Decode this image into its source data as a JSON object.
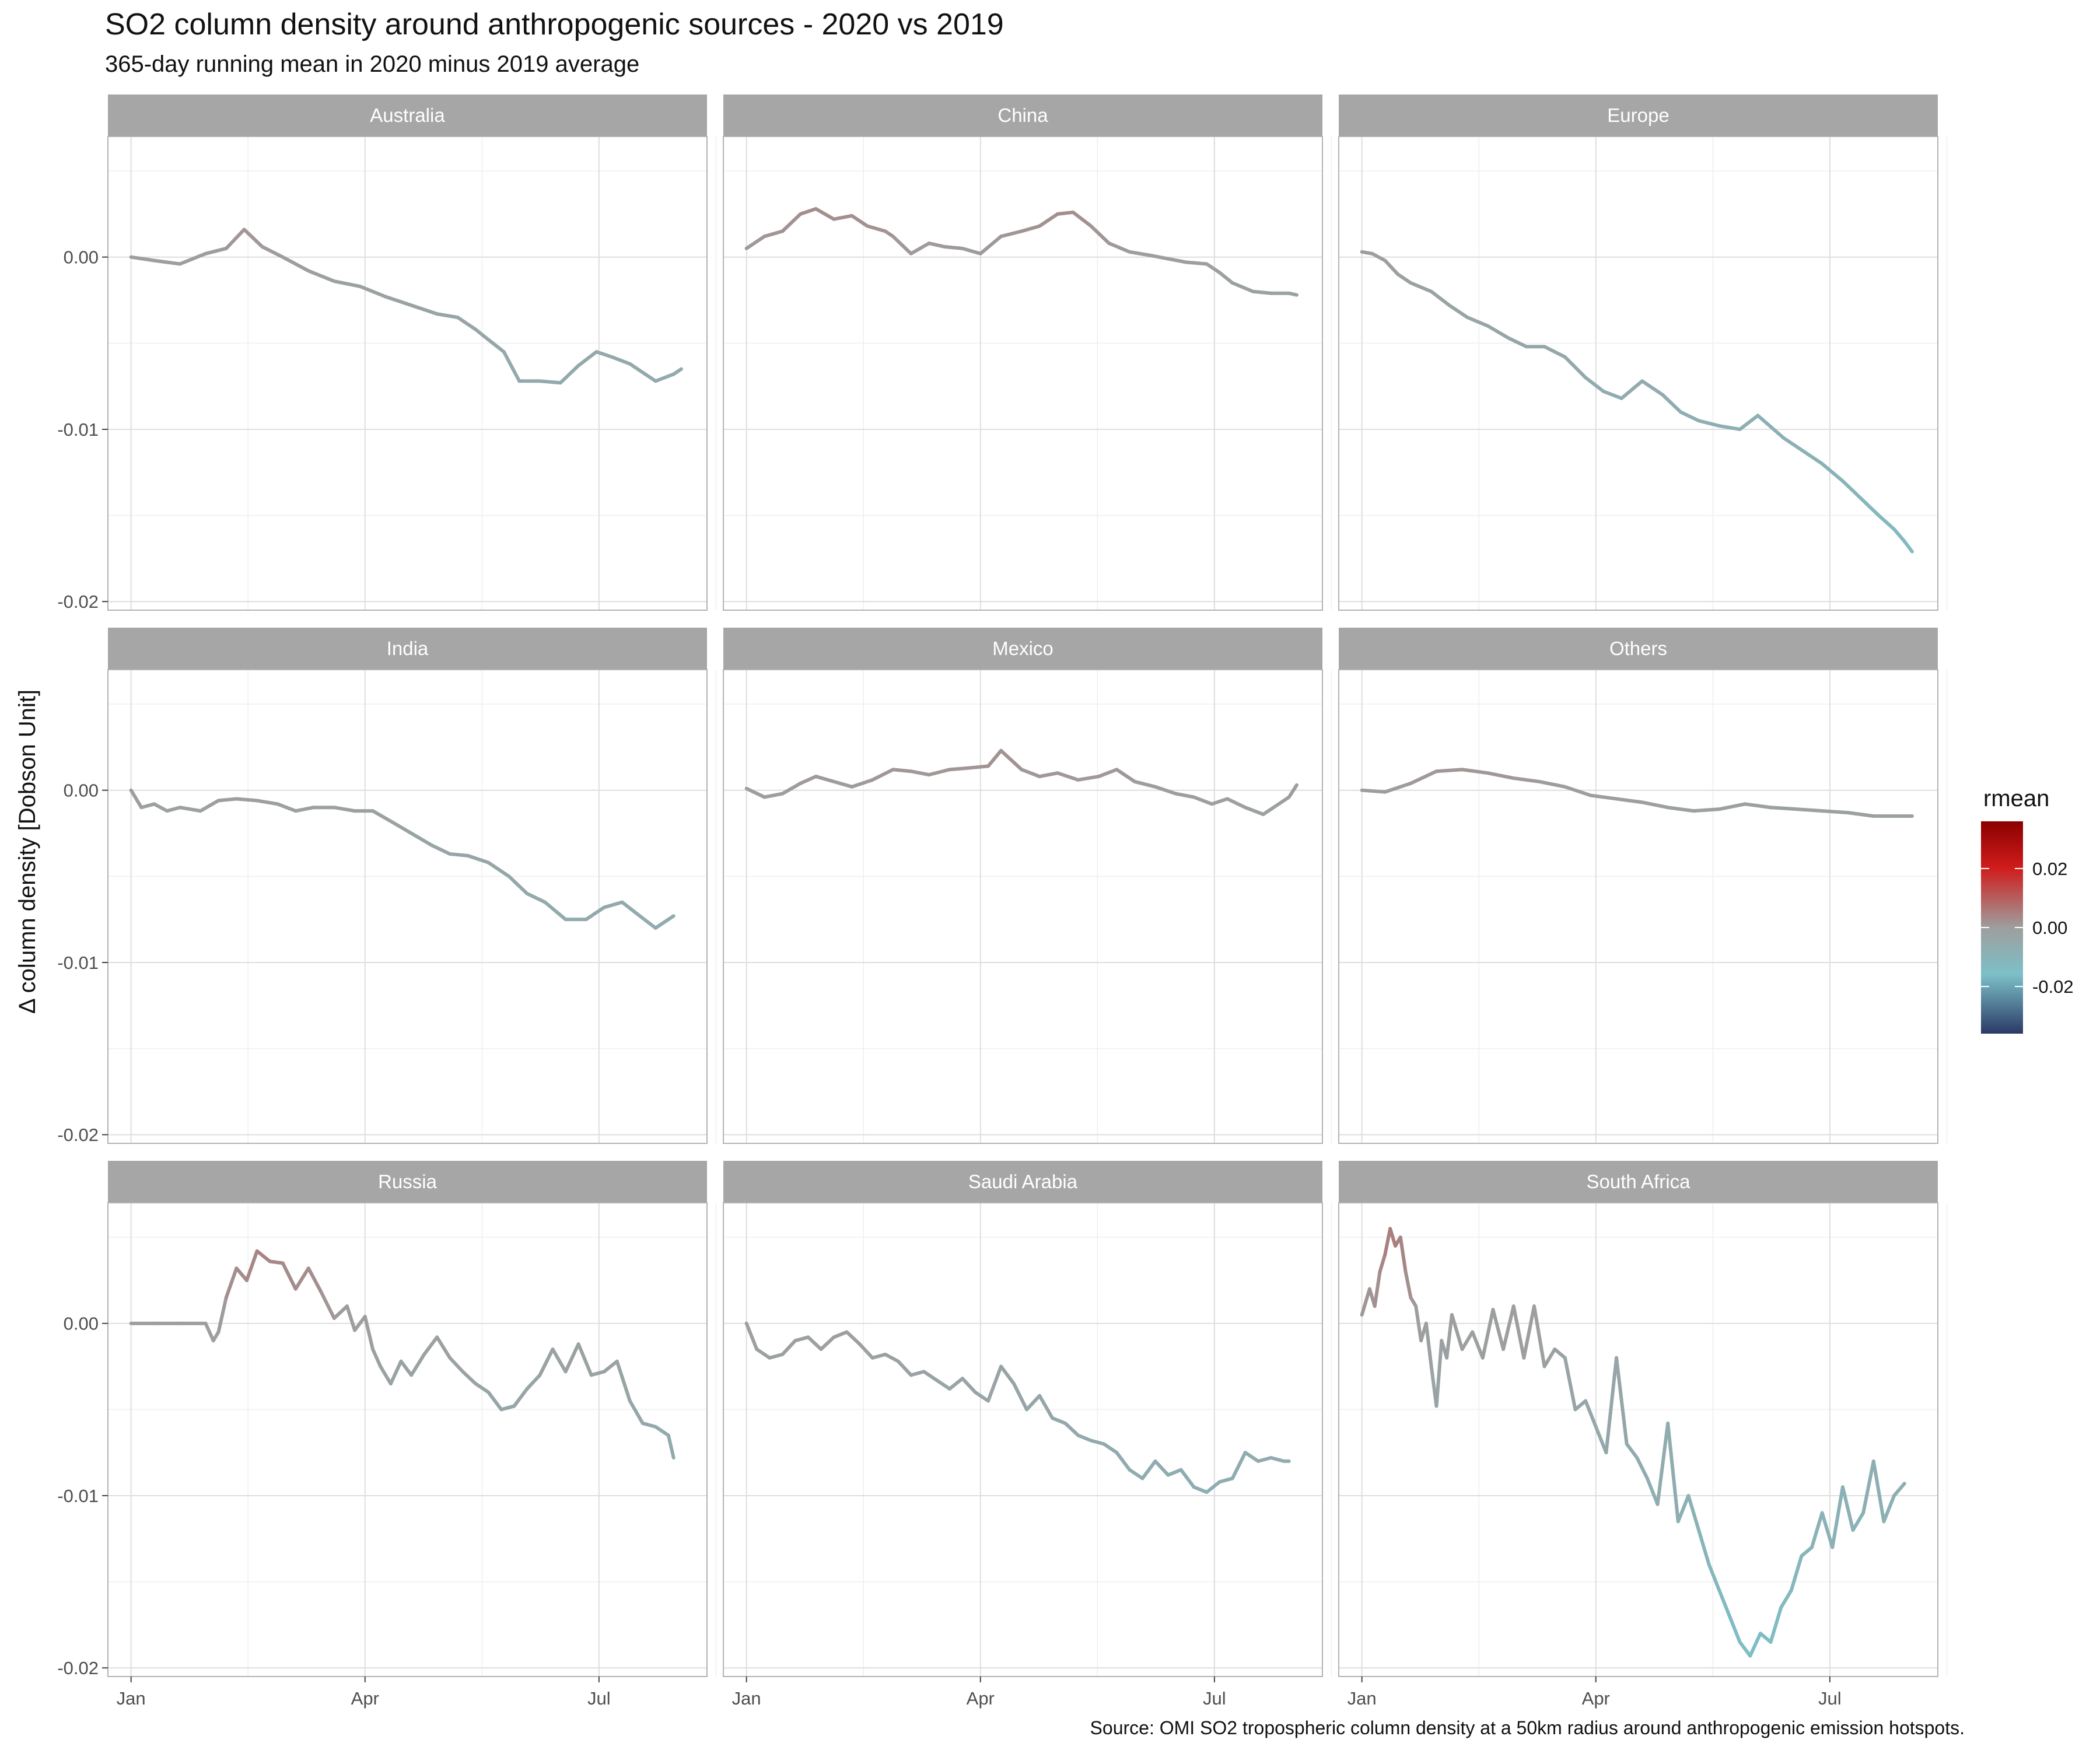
{
  "title": "SO2 column density around anthropogenic sources - 2020 vs 2019",
  "subtitle": "365-day running mean in 2020 minus 2019 average",
  "caption": "Source: OMI SO2 tropospheric column density at a 50km radius around anthropogenic emission hotspots.",
  "chart_data": {
    "type": "line",
    "title": "SO2 column density around anthropogenic sources - 2020 vs 2019",
    "subtitle": "365-day running mean in 2020 minus 2019 average",
    "xlabel": "",
    "ylabel": "Δ column density [Dobson Unit]",
    "x_ticks": [
      "Jan",
      "Apr",
      "Jul"
    ],
    "x_tick_days": [
      1,
      92,
      183
    ],
    "xlim": [
      -8,
      225
    ],
    "ylim": [
      -0.0205,
      0.007
    ],
    "y_ticks": [
      0.0,
      -0.01,
      -0.02
    ],
    "y_tick_labels": [
      "0.00",
      "-0.01",
      "-0.02"
    ],
    "grid": true,
    "facet_layout": [
      3,
      3
    ],
    "legend": {
      "title": "rmean",
      "placement": "right",
      "ticks": [
        0.02,
        0.0,
        -0.02
      ],
      "tick_labels": [
        "0.02",
        "0.00",
        "-0.02"
      ],
      "range": [
        -0.036,
        0.036
      ],
      "colors": [
        "#2b3a66",
        "#7cc0c8",
        "#9e9e9e",
        "#d01c1c",
        "#8b0000"
      ]
    },
    "series": [
      {
        "name": "Australia",
        "x": [
          1,
          10,
          20,
          30,
          38,
          45,
          52,
          60,
          70,
          80,
          90,
          100,
          110,
          120,
          128,
          135,
          140,
          146,
          152,
          160,
          168,
          175,
          182,
          188,
          195,
          205,
          212,
          215
        ],
        "y": [
          0.0,
          -0.0002,
          -0.0004,
          0.0002,
          0.0005,
          0.0016,
          0.0006,
          0.0,
          -0.0008,
          -0.0014,
          -0.0017,
          -0.0023,
          -0.0028,
          -0.0033,
          -0.0035,
          -0.0042,
          -0.0048,
          -0.0055,
          -0.0072,
          -0.0072,
          -0.0073,
          -0.0063,
          -0.0055,
          -0.0058,
          -0.0062,
          -0.0072,
          -0.0068,
          -0.0065
        ]
      },
      {
        "name": "China",
        "x": [
          1,
          8,
          15,
          22,
          28,
          35,
          42,
          48,
          55,
          58,
          65,
          72,
          78,
          85,
          92,
          100,
          108,
          115,
          122,
          128,
          135,
          142,
          150,
          158,
          165,
          172,
          180,
          185,
          190,
          198,
          205,
          212,
          215
        ],
        "y": [
          0.0005,
          0.0012,
          0.0015,
          0.0025,
          0.0028,
          0.0022,
          0.0024,
          0.0018,
          0.0015,
          0.0012,
          0.0002,
          0.0008,
          0.0006,
          0.0005,
          0.0002,
          0.0012,
          0.0015,
          0.0018,
          0.0025,
          0.0026,
          0.0018,
          0.0008,
          0.0003,
          0.0001,
          -0.0001,
          -0.0003,
          -0.0004,
          -0.0009,
          -0.0015,
          -0.002,
          -0.0021,
          -0.0021,
          -0.0022
        ]
      },
      {
        "name": "Europe",
        "x": [
          1,
          5,
          10,
          15,
          20,
          28,
          35,
          42,
          50,
          58,
          65,
          72,
          80,
          88,
          95,
          102,
          110,
          118,
          125,
          132,
          140,
          148,
          155,
          165,
          172,
          180,
          188,
          195,
          202,
          208,
          212,
          215
        ],
        "y": [
          0.0003,
          0.0002,
          -0.0002,
          -0.001,
          -0.0015,
          -0.002,
          -0.0028,
          -0.0035,
          -0.004,
          -0.0047,
          -0.0052,
          -0.0052,
          -0.0058,
          -0.007,
          -0.0078,
          -0.0082,
          -0.0072,
          -0.008,
          -0.009,
          -0.0095,
          -0.0098,
          -0.01,
          -0.0092,
          -0.0105,
          -0.0112,
          -0.012,
          -0.013,
          -0.014,
          -0.015,
          -0.0158,
          -0.0165,
          -0.0171
        ]
      },
      {
        "name": "India",
        "x": [
          1,
          5,
          10,
          15,
          20,
          28,
          35,
          42,
          50,
          58,
          65,
          72,
          80,
          88,
          95,
          102,
          110,
          118,
          125,
          132,
          140,
          148,
          155,
          162,
          170,
          178,
          185,
          192,
          198,
          205,
          210,
          212
        ],
        "y": [
          0.0,
          -0.001,
          -0.0008,
          -0.0012,
          -0.001,
          -0.0012,
          -0.0006,
          -0.0005,
          -0.0006,
          -0.0008,
          -0.0012,
          -0.001,
          -0.001,
          -0.0012,
          -0.0012,
          -0.0018,
          -0.0025,
          -0.0032,
          -0.0037,
          -0.0038,
          -0.0042,
          -0.005,
          -0.006,
          -0.0065,
          -0.0075,
          -0.0075,
          -0.0068,
          -0.0065,
          -0.0072,
          -0.008,
          -0.0075,
          -0.0073
        ]
      },
      {
        "name": "Mexico",
        "x": [
          1,
          8,
          15,
          22,
          28,
          35,
          42,
          50,
          58,
          65,
          72,
          80,
          88,
          95,
          100,
          108,
          115,
          122,
          130,
          138,
          145,
          152,
          160,
          168,
          175,
          182,
          188,
          195,
          202,
          208,
          212,
          215
        ],
        "y": [
          0.0001,
          -0.0004,
          -0.0002,
          0.0004,
          0.0008,
          0.0005,
          0.0002,
          0.0006,
          0.0012,
          0.0011,
          0.0009,
          0.0012,
          0.0013,
          0.0014,
          0.0023,
          0.0012,
          0.0008,
          0.001,
          0.0006,
          0.0008,
          0.0012,
          0.0005,
          0.0002,
          -0.0002,
          -0.0004,
          -0.0008,
          -0.0005,
          -0.001,
          -0.0014,
          -0.0008,
          -0.0004,
          0.0003
        ]
      },
      {
        "name": "Others",
        "x": [
          1,
          10,
          20,
          30,
          40,
          50,
          60,
          70,
          80,
          90,
          100,
          110,
          120,
          130,
          140,
          150,
          160,
          170,
          180,
          190,
          200,
          210,
          215
        ],
        "y": [
          0.0,
          -0.0001,
          0.0004,
          0.0011,
          0.0012,
          0.001,
          0.0007,
          0.0005,
          0.0002,
          -0.0003,
          -0.0005,
          -0.0007,
          -0.001,
          -0.0012,
          -0.0011,
          -0.0008,
          -0.001,
          -0.0011,
          -0.0012,
          -0.0013,
          -0.0015,
          -0.0015,
          -0.0015
        ]
      },
      {
        "name": "Russia",
        "x": [
          1,
          10,
          20,
          30,
          33,
          35,
          38,
          42,
          46,
          50,
          55,
          60,
          65,
          70,
          75,
          80,
          85,
          88,
          92,
          95,
          98,
          102,
          106,
          110,
          115,
          120,
          125,
          130,
          135,
          140,
          145,
          150,
          155,
          160,
          165,
          170,
          175,
          180,
          185,
          190,
          195,
          200,
          205,
          210,
          212
        ],
        "y": [
          0.0,
          0.0,
          0.0,
          0.0,
          -0.001,
          -0.0005,
          0.0015,
          0.0032,
          0.0025,
          0.0042,
          0.0036,
          0.0035,
          0.002,
          0.0032,
          0.0018,
          0.0003,
          0.001,
          -0.0004,
          0.0004,
          -0.0015,
          -0.0025,
          -0.0035,
          -0.0022,
          -0.003,
          -0.0018,
          -0.0008,
          -0.002,
          -0.0028,
          -0.0035,
          -0.004,
          -0.005,
          -0.0048,
          -0.0038,
          -0.003,
          -0.0015,
          -0.0028,
          -0.0012,
          -0.003,
          -0.0028,
          -0.0022,
          -0.0045,
          -0.0058,
          -0.006,
          -0.0065,
          -0.0078
        ]
      },
      {
        "name": "Saudi Arabia",
        "x": [
          1,
          5,
          10,
          15,
          20,
          25,
          30,
          35,
          40,
          45,
          50,
          55,
          60,
          65,
          70,
          75,
          80,
          85,
          90,
          95,
          100,
          105,
          110,
          115,
          120,
          125,
          130,
          135,
          140,
          145,
          150,
          155,
          160,
          165,
          170,
          175,
          180,
          185,
          190,
          195,
          200,
          205,
          210,
          212
        ],
        "y": [
          0.0,
          -0.0015,
          -0.002,
          -0.0018,
          -0.001,
          -0.0008,
          -0.0015,
          -0.0008,
          -0.0005,
          -0.0012,
          -0.002,
          -0.0018,
          -0.0022,
          -0.003,
          -0.0028,
          -0.0033,
          -0.0038,
          -0.0032,
          -0.004,
          -0.0045,
          -0.0025,
          -0.0035,
          -0.005,
          -0.0042,
          -0.0055,
          -0.0058,
          -0.0065,
          -0.0068,
          -0.007,
          -0.0075,
          -0.0085,
          -0.009,
          -0.008,
          -0.0088,
          -0.0085,
          -0.0095,
          -0.0098,
          -0.0092,
          -0.009,
          -0.0075,
          -0.008,
          -0.0078,
          -0.008,
          -0.008
        ]
      },
      {
        "name": "South Africa",
        "x": [
          1,
          4,
          6,
          8,
          10,
          12,
          14,
          16,
          18,
          20,
          22,
          24,
          26,
          28,
          30,
          32,
          34,
          36,
          40,
          44,
          48,
          52,
          56,
          60,
          64,
          68,
          72,
          76,
          80,
          84,
          88,
          92,
          96,
          100,
          104,
          108,
          112,
          116,
          120,
          124,
          128,
          132,
          136,
          140,
          144,
          148,
          152,
          156,
          160,
          164,
          168,
          172,
          176,
          180,
          184,
          188,
          192,
          196,
          200,
          204,
          208,
          212
        ],
        "y": [
          0.0005,
          0.002,
          0.001,
          0.003,
          0.004,
          0.0055,
          0.0045,
          0.005,
          0.003,
          0.0015,
          0.001,
          -0.001,
          0.0,
          -0.0025,
          -0.0048,
          -0.001,
          -0.002,
          0.0005,
          -0.0015,
          -0.0005,
          -0.002,
          0.0008,
          -0.0015,
          0.001,
          -0.002,
          0.001,
          -0.0025,
          -0.0015,
          -0.002,
          -0.005,
          -0.0045,
          -0.006,
          -0.0075,
          -0.002,
          -0.007,
          -0.0078,
          -0.009,
          -0.0105,
          -0.0058,
          -0.0115,
          -0.01,
          -0.012,
          -0.014,
          -0.0155,
          -0.017,
          -0.0185,
          -0.0193,
          -0.018,
          -0.0185,
          -0.0165,
          -0.0155,
          -0.0135,
          -0.013,
          -0.011,
          -0.013,
          -0.0095,
          -0.012,
          -0.011,
          -0.008,
          -0.0115,
          -0.01,
          -0.0093
        ]
      }
    ]
  }
}
